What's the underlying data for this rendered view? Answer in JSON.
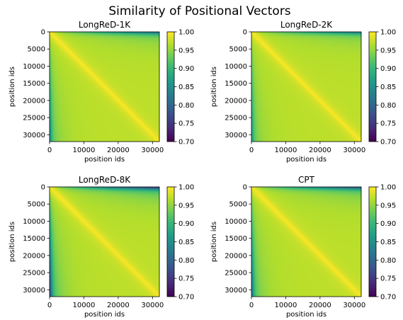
{
  "figure_title": "Similarity of Positional Vectors",
  "colormap": "viridis",
  "chart_data": [
    {
      "type": "heatmap",
      "title": "LongReD-1K",
      "xlabel": "position ids",
      "ylabel": "position ids",
      "xlim": [
        0,
        32000
      ],
      "ylim": [
        32000,
        0
      ],
      "xticks": [
        0,
        10000,
        20000,
        30000
      ],
      "yticks": [
        0,
        5000,
        10000,
        15000,
        20000,
        25000,
        30000
      ],
      "colorbar": {
        "range": [
          0.7,
          1.0
        ],
        "ticks": [
          "0.70",
          "0.75",
          "0.80",
          "0.85",
          "0.90",
          "0.95",
          "1.00"
        ]
      },
      "approx_values": {
        "diagonal": 1.0,
        "bulk": 0.97,
        "corner_first_row_far": 0.9,
        "edge_first_col_far": 0.93
      }
    },
    {
      "type": "heatmap",
      "title": "LongReD-2K",
      "xlabel": "position ids",
      "ylabel": "position ids",
      "xlim": [
        0,
        32000
      ],
      "ylim": [
        32000,
        0
      ],
      "xticks": [
        0,
        10000,
        20000,
        30000
      ],
      "yticks": [
        0,
        5000,
        10000,
        15000,
        20000,
        25000,
        30000
      ],
      "colorbar": {
        "range": [
          0.7,
          1.0
        ],
        "ticks": [
          "0.70",
          "0.75",
          "0.80",
          "0.85",
          "0.90",
          "0.95",
          "1.00"
        ]
      },
      "approx_values": {
        "diagonal": 1.0,
        "bulk": 0.97,
        "corner_first_row_far": 0.91,
        "edge_first_col_far": 0.94
      }
    },
    {
      "type": "heatmap",
      "title": "LongReD-8K",
      "xlabel": "position ids",
      "ylabel": "position ids",
      "xlim": [
        0,
        32000
      ],
      "ylim": [
        32000,
        0
      ],
      "xticks": [
        0,
        10000,
        20000,
        30000
      ],
      "yticks": [
        0,
        5000,
        10000,
        15000,
        20000,
        25000,
        30000
      ],
      "colorbar": {
        "range": [
          0.7,
          1.0
        ],
        "ticks": [
          "0.70",
          "0.75",
          "0.80",
          "0.85",
          "0.90",
          "0.95",
          "1.00"
        ]
      },
      "approx_values": {
        "diagonal": 1.0,
        "bulk": 0.97,
        "corner_first_row_far": 0.86,
        "edge_first_col_far": 0.88
      }
    },
    {
      "type": "heatmap",
      "title": "CPT",
      "xlabel": "position ids",
      "ylabel": "position ids",
      "xlim": [
        0,
        32000
      ],
      "ylim": [
        32000,
        0
      ],
      "xticks": [
        0,
        10000,
        20000,
        30000
      ],
      "yticks": [
        0,
        5000,
        10000,
        15000,
        20000,
        25000,
        30000
      ],
      "colorbar": {
        "range": [
          0.7,
          1.0
        ],
        "ticks": [
          "0.70",
          "0.75",
          "0.80",
          "0.85",
          "0.90",
          "0.95",
          "1.00"
        ]
      },
      "approx_values": {
        "diagonal": 1.0,
        "bulk": 0.97,
        "corner_first_row_far": 0.88,
        "edge_first_col_far": 0.91
      }
    }
  ]
}
